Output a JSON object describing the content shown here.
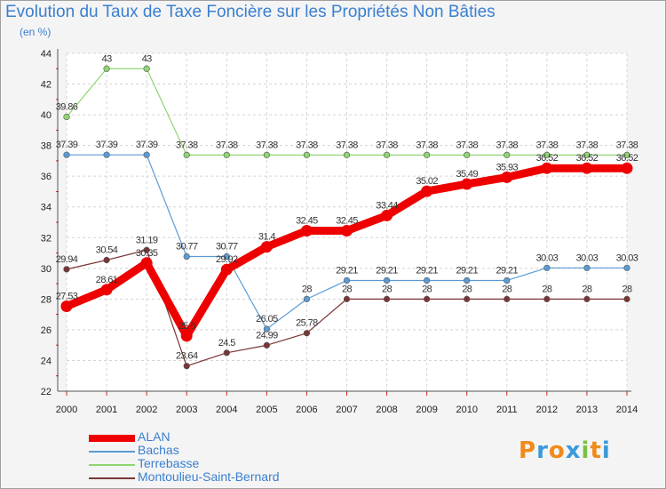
{
  "chart_data": {
    "type": "line",
    "title": "Evolution du Taux de Taxe Foncière sur les Propriétés Non Bâties",
    "subtitle": "(en %)",
    "x": [
      "2000",
      "2001",
      "2002",
      "2003",
      "2004",
      "2005",
      "2006",
      "2007",
      "2008",
      "2009",
      "2010",
      "2011",
      "2012",
      "2013",
      "2014"
    ],
    "ylim": [
      22,
      44
    ],
    "yticks": [
      22,
      24,
      26,
      28,
      30,
      32,
      34,
      36,
      38,
      40,
      42,
      44
    ],
    "grid": true,
    "series": [
      {
        "name": "ALAN",
        "color": "#ee0000",
        "values": [
          27.53,
          28.61,
          30.35,
          25.6,
          29.92,
          31.4,
          32.45,
          32.45,
          33.44,
          35.02,
          35.49,
          35.93,
          36.52,
          36.52,
          36.52
        ],
        "labels": [
          "27.53",
          "28.61",
          "30.35",
          "25.6",
          "29.92",
          "31.4",
          "32.45",
          "32.45",
          "33.44",
          "35.02",
          "35.49",
          "35.93",
          "36.52",
          "36.52",
          "36.52"
        ]
      },
      {
        "name": "Bachas",
        "color": "#5b9bd5",
        "values": [
          37.39,
          37.39,
          37.39,
          30.77,
          30.77,
          26.05,
          28,
          29.21,
          29.21,
          29.21,
          29.21,
          29.21,
          30.03,
          30.03,
          30.03
        ],
        "labels": [
          "37.39",
          "37.39",
          "37.39",
          "30.77",
          "30.77",
          "26.05",
          "28",
          "29.21",
          "29.21",
          "29.21",
          "29.21",
          "29.21",
          "30.03",
          "30.03",
          "30.03"
        ]
      },
      {
        "name": "Terrebasse",
        "color": "#8fd672",
        "values": [
          39.86,
          43,
          43,
          37.38,
          37.38,
          37.38,
          37.38,
          37.38,
          37.38,
          37.38,
          37.38,
          37.38,
          37.38,
          37.38,
          37.38
        ],
        "labels": [
          "39.86",
          "43",
          "43",
          "37.38",
          "37.38",
          "37.38",
          "37.38",
          "37.38",
          "37.38",
          "37.38",
          "37.38",
          "37.38",
          "37.38",
          "37.38",
          "37.38"
        ]
      },
      {
        "name": "Montoulieu-Saint-Bernard",
        "color": "#7a3535",
        "values": [
          29.94,
          30.54,
          31.19,
          23.64,
          24.5,
          24.99,
          25.78,
          28,
          28,
          28,
          28,
          28,
          28,
          28,
          28
        ],
        "labels": [
          "29.94",
          "30.54",
          "31.19",
          "23.64",
          "24.5",
          "24.99",
          "25.78",
          "28",
          "28",
          "28",
          "28",
          "28",
          "28",
          "28",
          "28"
        ]
      }
    ]
  },
  "logo": {
    "letters": [
      "P",
      "r",
      "o",
      "x",
      "i",
      "t",
      "i"
    ],
    "colors": [
      "#f08a1a",
      "#3a9ad9",
      "#f08a1a",
      "#3a9ad9",
      "#7ac143",
      "#f08a1a",
      "#3a9ad9"
    ]
  }
}
